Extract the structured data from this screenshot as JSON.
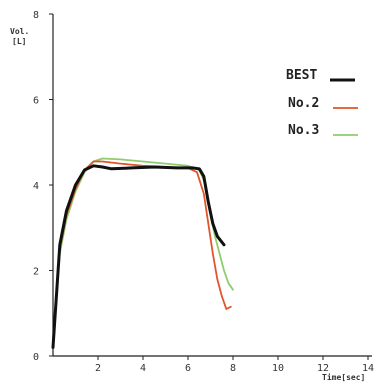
{
  "chart_data": {
    "type": "line",
    "ylabel_lines": [
      "Vol.",
      "[L]"
    ],
    "xlabel": "Time[sec]",
    "xlim": [
      0,
      14
    ],
    "ylim": [
      0,
      8
    ],
    "x_ticks": [
      {
        "value": 2,
        "label": "2"
      },
      {
        "value": 4,
        "label": "4"
      },
      {
        "value": 6,
        "label": "6"
      },
      {
        "value": 8,
        "label": "8"
      },
      {
        "value": 10,
        "label": "10"
      },
      {
        "value": 12,
        "label": "12"
      },
      {
        "value": 14,
        "label": "14"
      }
    ],
    "y_ticks": [
      {
        "value": 0,
        "label": "0"
      },
      {
        "value": 2,
        "label": "2"
      },
      {
        "value": 4,
        "label": "4"
      },
      {
        "value": 6,
        "label": "6"
      },
      {
        "value": 8,
        "label": "8"
      }
    ],
    "grid": false,
    "legend_position": "top-right",
    "series": [
      {
        "name": "BEST",
        "color": "#111111",
        "x": [
          0,
          0.3,
          0.6,
          1.0,
          1.4,
          1.8,
          2.2,
          2.6,
          3.5,
          4.5,
          5.5,
          6.2,
          6.5,
          6.7,
          6.9,
          7.1,
          7.3,
          7.6
        ],
        "y": [
          0.2,
          2.6,
          3.4,
          4.0,
          4.35,
          4.45,
          4.42,
          4.38,
          4.4,
          4.42,
          4.4,
          4.4,
          4.38,
          4.2,
          3.6,
          3.1,
          2.8,
          2.6
        ]
      },
      {
        "name": "No.2",
        "color": "#e0552a",
        "x": [
          0,
          0.3,
          0.6,
          1.0,
          1.4,
          1.8,
          2.2,
          3.0,
          4.0,
          5.0,
          6.0,
          6.4,
          6.7,
          6.9,
          7.1,
          7.3,
          7.5,
          7.7,
          7.9
        ],
        "y": [
          0.2,
          2.5,
          3.3,
          3.9,
          4.35,
          4.55,
          4.55,
          4.5,
          4.45,
          4.42,
          4.4,
          4.3,
          3.8,
          3.1,
          2.4,
          1.8,
          1.4,
          1.1,
          1.15
        ]
      },
      {
        "name": "No.3",
        "color": "#8fcc6e",
        "x": [
          0,
          0.3,
          0.6,
          1.0,
          1.4,
          1.8,
          2.2,
          3.0,
          4.0,
          5.0,
          6.0,
          6.5,
          6.8,
          7.0,
          7.2,
          7.4,
          7.6,
          7.8,
          8.0
        ],
        "y": [
          0.2,
          2.4,
          3.2,
          3.85,
          4.3,
          4.55,
          4.62,
          4.6,
          4.55,
          4.5,
          4.45,
          4.35,
          4.0,
          3.3,
          2.8,
          2.4,
          2.0,
          1.7,
          1.55
        ]
      }
    ]
  }
}
